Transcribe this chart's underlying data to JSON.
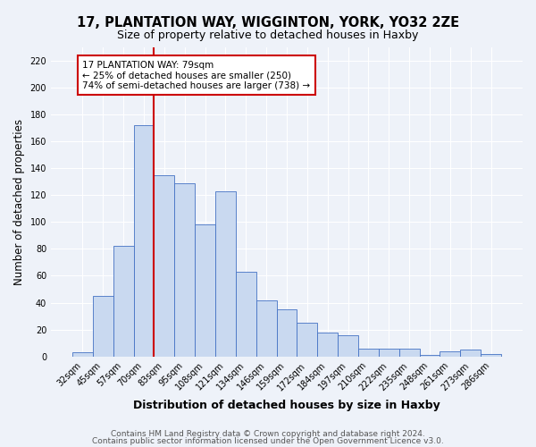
{
  "title": "17, PLANTATION WAY, WIGGINTON, YORK, YO32 2ZE",
  "subtitle": "Size of property relative to detached houses in Haxby",
  "xlabel": "Distribution of detached houses by size in Haxby",
  "ylabel": "Number of detached properties",
  "bar_labels": [
    "32sqm",
    "45sqm",
    "57sqm",
    "70sqm",
    "83sqm",
    "95sqm",
    "108sqm",
    "121sqm",
    "134sqm",
    "146sqm",
    "159sqm",
    "172sqm",
    "184sqm",
    "197sqm",
    "210sqm",
    "222sqm",
    "235sqm",
    "248sqm",
    "261sqm",
    "273sqm",
    "286sqm"
  ],
  "bar_heights": [
    3,
    45,
    82,
    172,
    135,
    129,
    98,
    123,
    63,
    42,
    35,
    25,
    18,
    16,
    6,
    6,
    6,
    1,
    4,
    5,
    2
  ],
  "bar_color": "#c9d9f0",
  "bar_edge_color": "#4472c4",
  "vline_index": 3.5,
  "vline_color": "#cc0000",
  "annotation_text": "17 PLANTATION WAY: 79sqm\n← 25% of detached houses are smaller (250)\n74% of semi-detached houses are larger (738) →",
  "annotation_box_color": "#ffffff",
  "annotation_box_edge": "#cc0000",
  "ylim": [
    0,
    230
  ],
  "yticks": [
    0,
    20,
    40,
    60,
    80,
    100,
    120,
    140,
    160,
    180,
    200,
    220
  ],
  "footnote1": "Contains HM Land Registry data © Crown copyright and database right 2024.",
  "footnote2": "Contains public sector information licensed under the Open Government Licence v3.0.",
  "background_color": "#eef2f9",
  "grid_color": "#ffffff",
  "title_fontsize": 10.5,
  "subtitle_fontsize": 9,
  "xlabel_fontsize": 9,
  "ylabel_fontsize": 8.5,
  "tick_fontsize": 7,
  "annotation_fontsize": 7.5,
  "footnote_fontsize": 6.5
}
